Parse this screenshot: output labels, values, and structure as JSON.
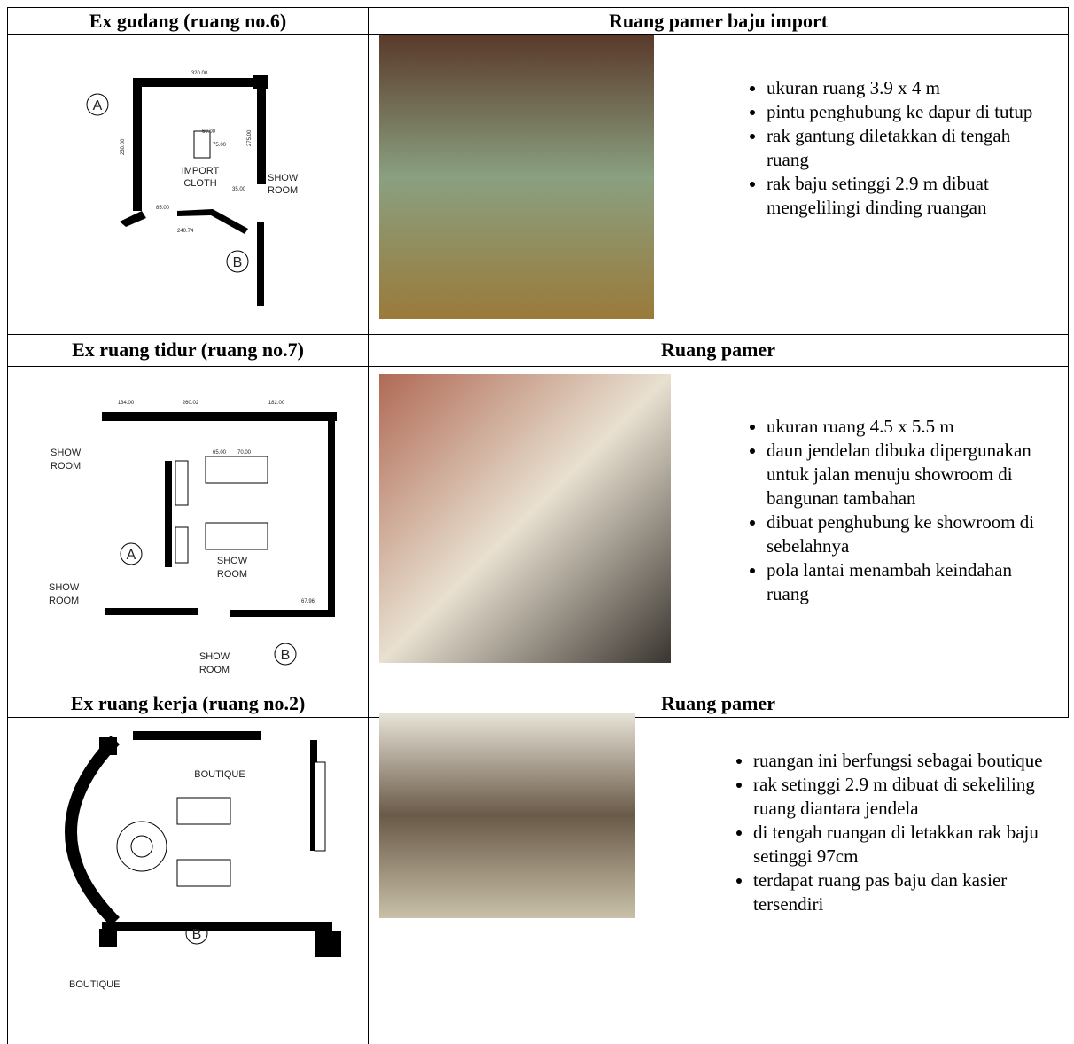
{
  "rows": [
    {
      "left_title": "Ex gudang (ruang no.6)",
      "right_title": "Ruang pamer baju import",
      "plan_labels": [
        "A",
        "320.00",
        "60.00",
        "75.00",
        "230.00",
        "275.00",
        "IMPORT",
        "CLOTH",
        "SHOW",
        "ROOM",
        "35.00",
        "85.00",
        "240.74",
        "B"
      ],
      "bullets": [
        "ukuran ruang 3.9 x 4 m",
        "pintu penghubung ke  dapur di tutup",
        "rak gantung diletakkan di tengah ruang",
        "rak baju setinggi 2.9 m dibuat mengelilingi dinding ruangan"
      ]
    },
    {
      "left_title": "Ex ruang tidur (ruang no.7)",
      "right_title": "Ruang pamer",
      "plan_labels": [
        "134.00",
        "260.02",
        "182.00",
        "SHOW",
        "ROOM",
        "65.00",
        "70.00",
        "A",
        "SHOW",
        "ROOM",
        "SHOW",
        "ROOM",
        "67.96",
        "SHOW",
        "ROOM",
        "B"
      ],
      "bullets": [
        "ukuran ruang 4.5 x 5.5 m",
        "daun jendelan dibuka dipergunakan untuk jalan menuju showroom di bangunan tambahan",
        "dibuat penghubung ke showroom di sebelahnya",
        "pola lantai menambah keindahan ruang"
      ]
    },
    {
      "left_title": "Ex ruang kerja (ruang no.2)",
      "right_title": "Ruang pamer",
      "plan_labels": [
        "BOUTIQUE",
        "B",
        "BOUTIQUE"
      ],
      "bullets": [
        "ruangan ini berfungsi sebagai boutique",
        "rak setinggi 2.9 m dibuat di sekeliling ruang diantara jendela",
        "di tengah ruangan di letakkan rak baju setinggi 97cm",
        "terdapat ruang pas baju dan kasier tersendiri"
      ]
    }
  ]
}
